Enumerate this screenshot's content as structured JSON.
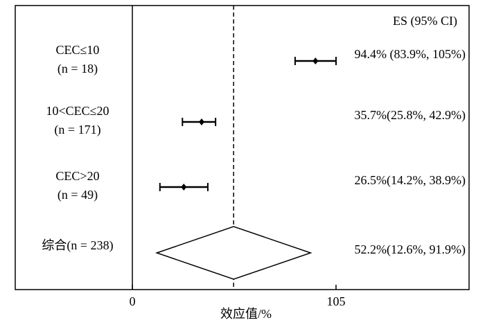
{
  "chart_data": {
    "type": "forest",
    "header": "ES (95% CI)",
    "x_label": "效应值/%",
    "xlim": [
      -60.4,
      173.6
    ],
    "xticks": [
      0,
      105
    ],
    "studies": [
      {
        "label": [
          "CEC≤10",
          "(n = 18)"
        ],
        "value": 94.4,
        "ci": [
          83.9,
          105
        ],
        "value_label": "94.4% (83.9%, 105%)"
      },
      {
        "label": [
          "10<CEC≤20",
          "(n = 171)"
        ],
        "value": 35.7,
        "ci": [
          25.8,
          42.9
        ],
        "value_label": "35.7%(25.8%, 42.9%)"
      },
      {
        "label": [
          "CEC>20",
          "(n = 49)"
        ],
        "value": 26.5,
        "ci": [
          14.2,
          38.9
        ],
        "value_label": "26.5%(14.2%, 38.9%)"
      }
    ],
    "pooled": {
      "label": "综合(n = 238)",
      "value": 52.2,
      "ci": [
        12.6,
        91.9
      ],
      "value_label": "52.2%(12.6%, 91.9%)"
    }
  }
}
